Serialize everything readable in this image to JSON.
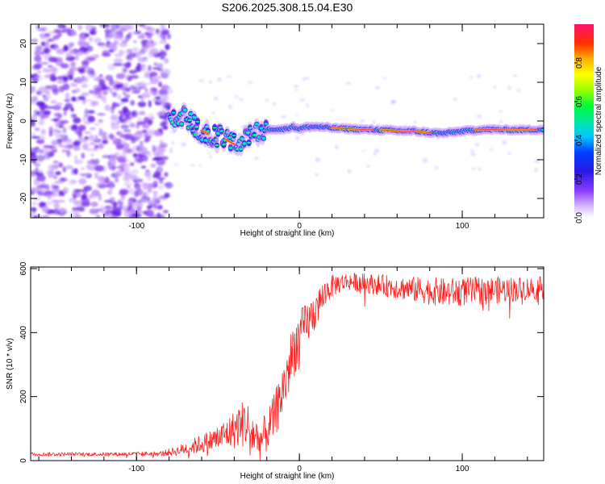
{
  "colors": {
    "snr_line": "#ff2020",
    "axes": "#000000",
    "noise": "#7a2cf0"
  },
  "chart_data": [
    {
      "type": "heatmap",
      "title": "S206.2025.308.15.04.E30",
      "xlabel": "Height of straight line (km)",
      "ylabel": "Frequency (Hz)",
      "xlim": [
        -165,
        150
      ],
      "ylim": [
        -25,
        25
      ],
      "xticks": [
        -100,
        0,
        100
      ],
      "yticks": [
        -20,
        -10,
        0,
        10,
        20
      ],
      "colorbar": {
        "label": "Normalized spectral amplitude",
        "range": [
          0,
          1
        ],
        "ticks": [
          "0.0",
          "0.2",
          "0.4",
          "0.6",
          "0.8"
        ],
        "tick_values": [
          0,
          0.2,
          0.4,
          0.6,
          0.8
        ]
      },
      "ridge": {
        "x": [
          -78,
          -70,
          -62,
          -55,
          -48,
          -42,
          -36,
          -32,
          -28,
          -22,
          -16,
          -10,
          -4,
          0,
          6,
          12,
          20,
          30,
          40,
          50,
          60,
          70,
          80,
          88,
          96,
          104,
          112,
          120,
          130,
          140,
          148
        ],
        "freq": [
          0,
          1,
          -2,
          -3.5,
          -4,
          -5.5,
          -7,
          -4,
          -3,
          -2.5,
          -2,
          -2.2,
          -1.5,
          -2,
          -1.5,
          -1.5,
          -1.8,
          -2,
          -2.2,
          -2.3,
          -2.5,
          -2.6,
          -3,
          -3.2,
          -2.8,
          -2.5,
          -2.2,
          -2.2,
          -2.3,
          -2.3,
          -2.2
        ]
      }
    },
    {
      "type": "line",
      "xlabel": "Height of straight line (km)",
      "ylabel": "SNR (10 * v/v)",
      "xlim": [
        -165,
        150
      ],
      "ylim": [
        0,
        605
      ],
      "xticks": [
        -100,
        0,
        100
      ],
      "yticks": [
        0,
        200,
        400,
        600
      ],
      "series": [
        {
          "name": "SNR",
          "x": [
            -165,
            -140,
            -110,
            -85,
            -75,
            -65,
            -55,
            -48,
            -42,
            -37,
            -33,
            -28,
            -24,
            -20,
            -16,
            -12,
            -8,
            -4,
            0,
            5,
            10,
            15,
            20,
            25,
            30,
            40,
            55,
            70,
            90,
            110,
            130,
            150
          ],
          "y": [
            20,
            20,
            20,
            22,
            30,
            45,
            60,
            75,
            90,
            110,
            120,
            80,
            60,
            90,
            130,
            190,
            260,
            340,
            390,
            430,
            470,
            520,
            545,
            555,
            560,
            555,
            545,
            535,
            525,
            530,
            535,
            540
          ],
          "noise": [
            6,
            6,
            6,
            8,
            15,
            25,
            35,
            45,
            55,
            70,
            80,
            70,
            60,
            65,
            70,
            80,
            90,
            90,
            80,
            70,
            60,
            45,
            35,
            30,
            28,
            30,
            35,
            40,
            45,
            45,
            40,
            35
          ]
        }
      ]
    }
  ]
}
